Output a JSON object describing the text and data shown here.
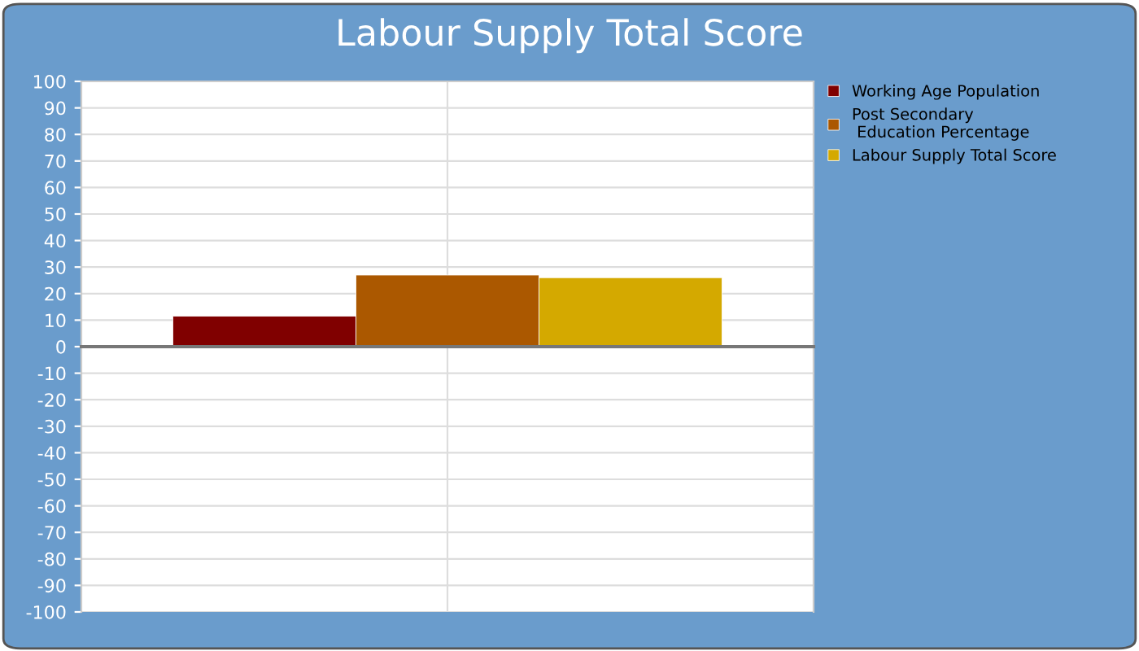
{
  "chart_data": {
    "type": "bar",
    "title": "Labour Supply Total Score",
    "categories": [
      null
    ],
    "series": [
      {
        "name": "Working Age Population",
        "color": "#800000",
        "values": [
          11.5
        ]
      },
      {
        "name": "Post Secondary\n Education Percentage",
        "color": "#ab5800",
        "values": [
          27
        ]
      },
      {
        "name": "Labour Supply Total Score",
        "color": "#d4a900",
        "values": [
          26
        ]
      }
    ],
    "ylim": [
      -100,
      100
    ],
    "yticks": [
      -100,
      -90,
      -80,
      -70,
      -60,
      -50,
      -40,
      -30,
      -20,
      -10,
      0,
      10,
      20,
      30,
      40,
      50,
      60,
      70,
      80,
      90,
      100
    ],
    "grid": true,
    "legend": "right"
  }
}
